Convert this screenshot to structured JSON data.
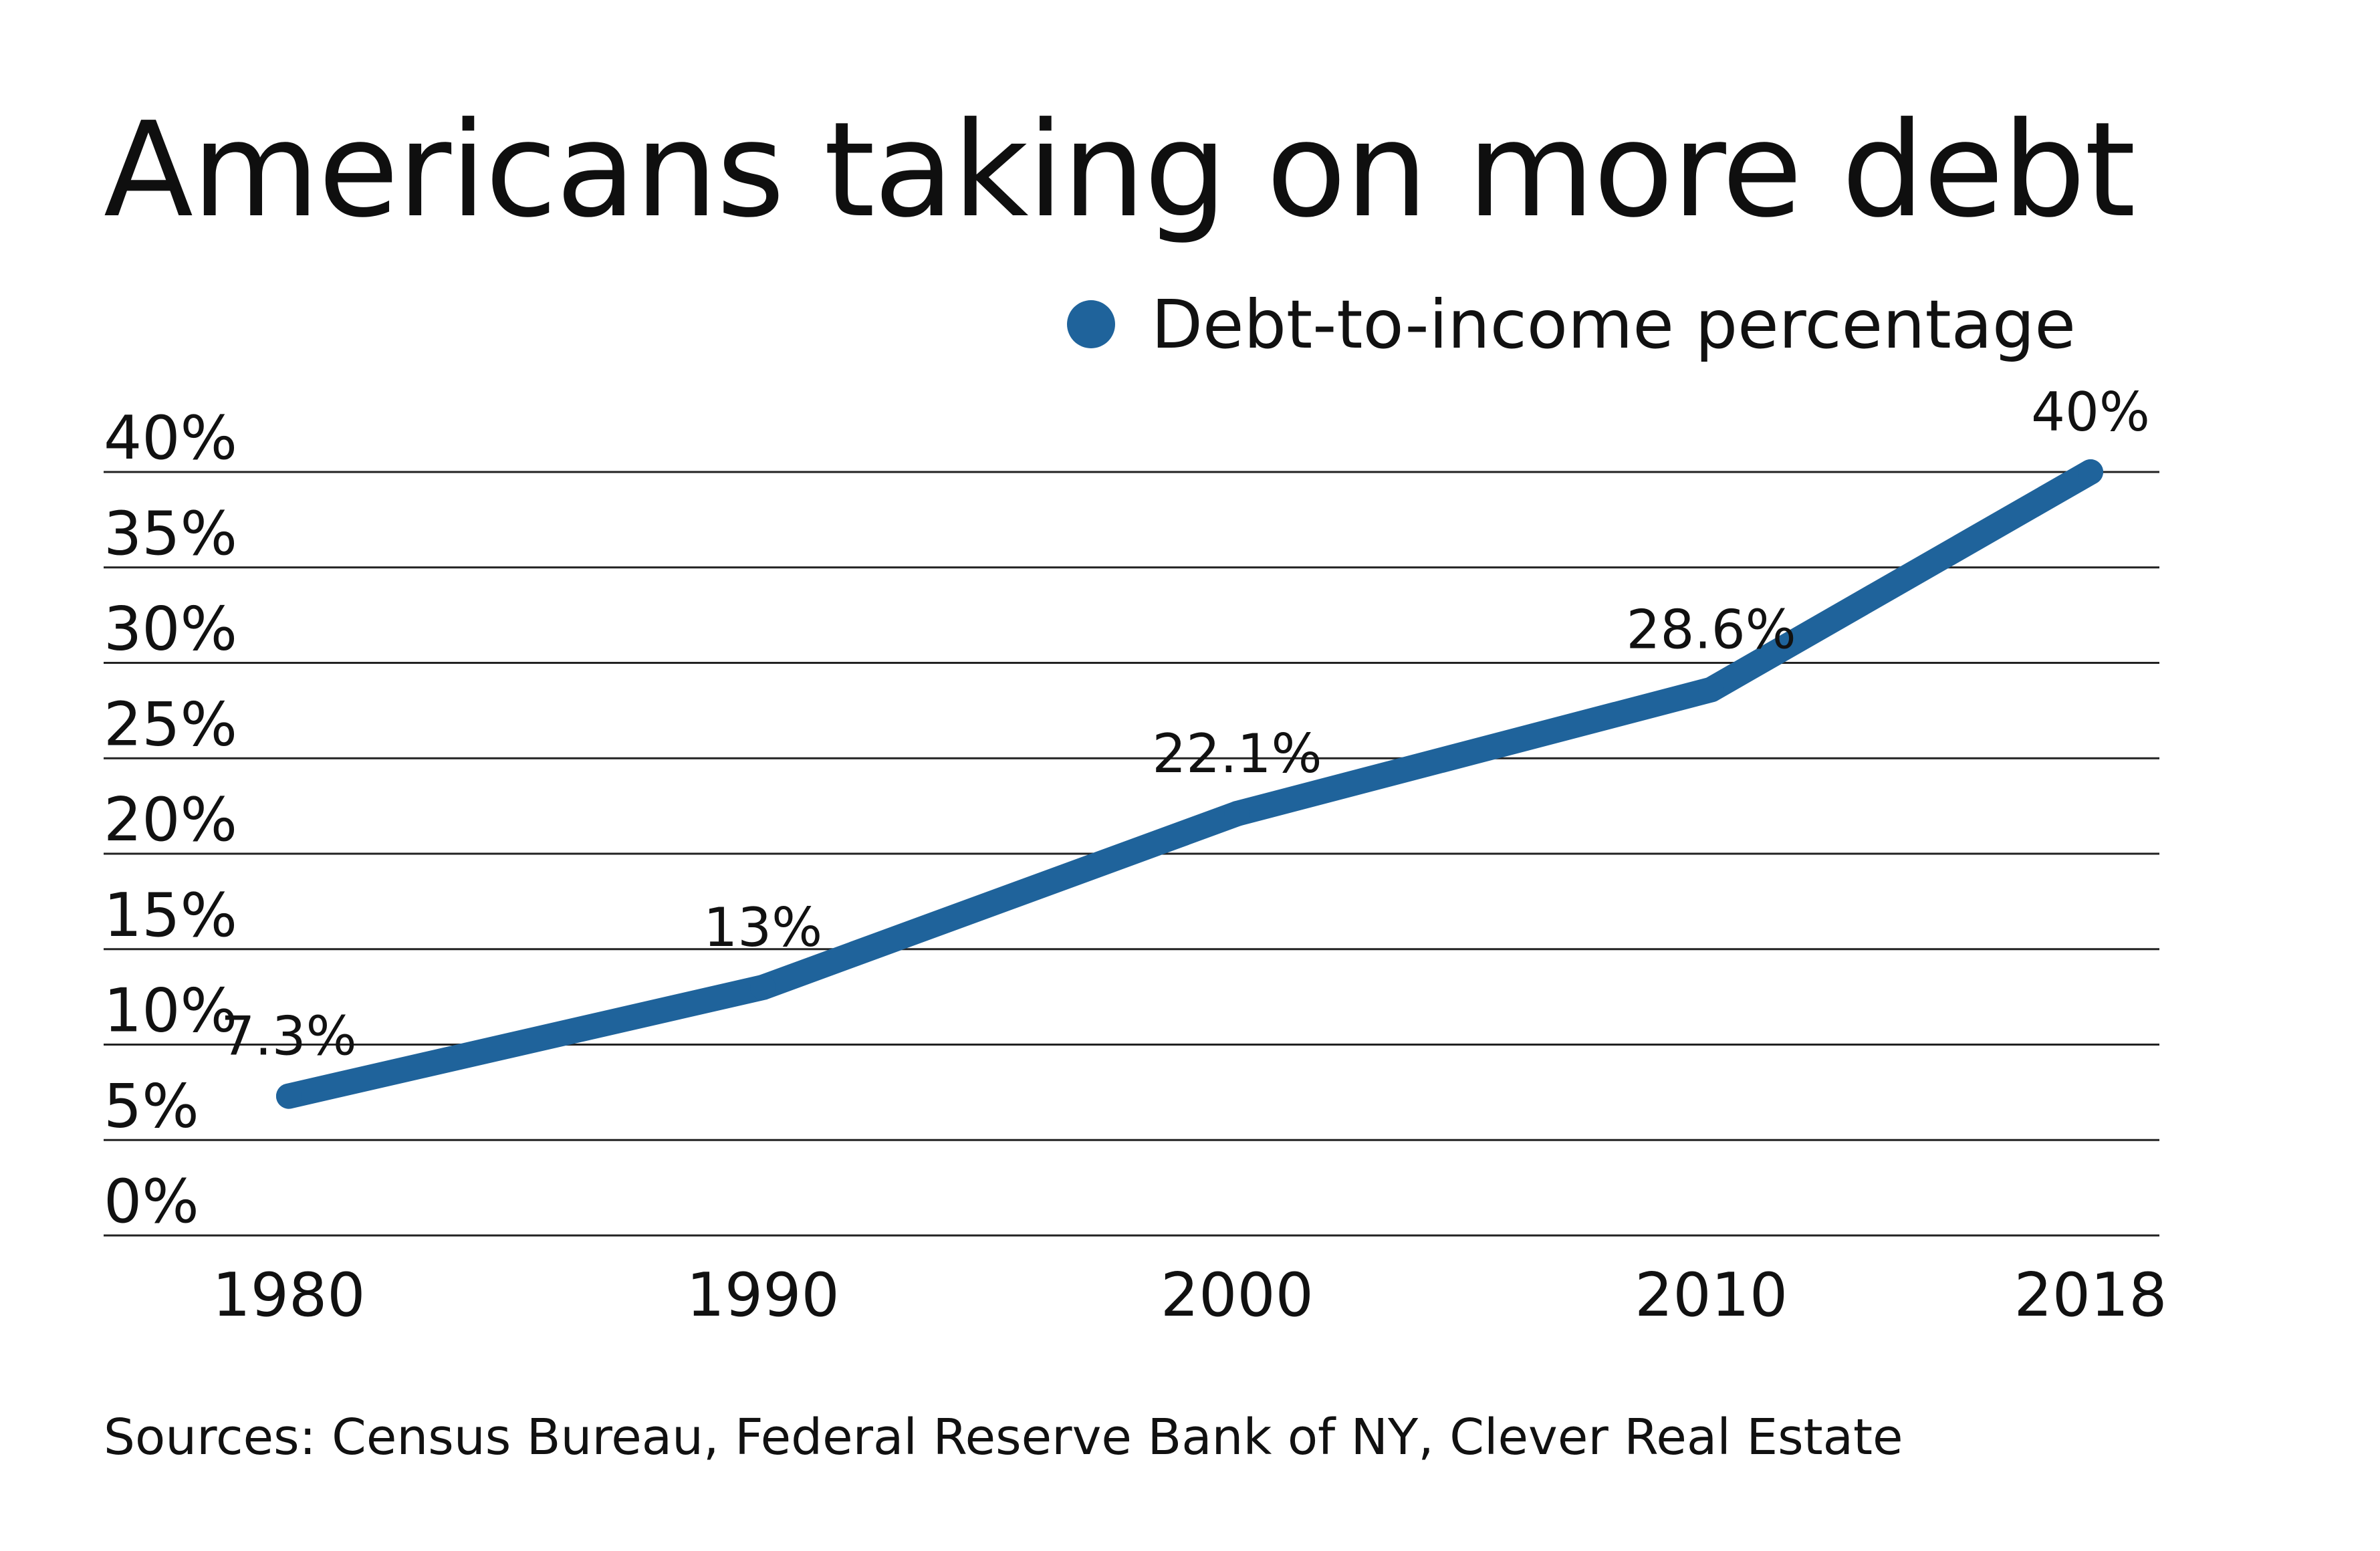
{
  "chart_data": {
    "type": "line",
    "title": "Americans taking on more debt",
    "categories": [
      "1980",
      "1990",
      "2000",
      "2010",
      "2018"
    ],
    "x": [
      1980,
      1990,
      2000,
      2010,
      2018
    ],
    "series": [
      {
        "name": "Debt-to-income percentage",
        "values": [
          7.3,
          13,
          22.1,
          28.6,
          40
        ],
        "labels": [
          "7.3%",
          "13%",
          "22.1%",
          "28.6%",
          "40%"
        ],
        "color": "#1f639b"
      }
    ],
    "yticks": [
      "0%",
      "5%",
      "10%",
      "15%",
      "20%",
      "25%",
      "30%",
      "35%",
      "40%"
    ],
    "ytick_values": [
      0,
      5,
      10,
      15,
      20,
      25,
      30,
      35,
      40
    ],
    "ylim": [
      0,
      40
    ],
    "xlim": [
      1980,
      2018
    ],
    "xlabel": "",
    "ylabel": "",
    "grid": true,
    "legend": "top-right",
    "source": "Sources: Census Bureau, Federal Reserve Bank of NY, Clever Real Estate"
  }
}
